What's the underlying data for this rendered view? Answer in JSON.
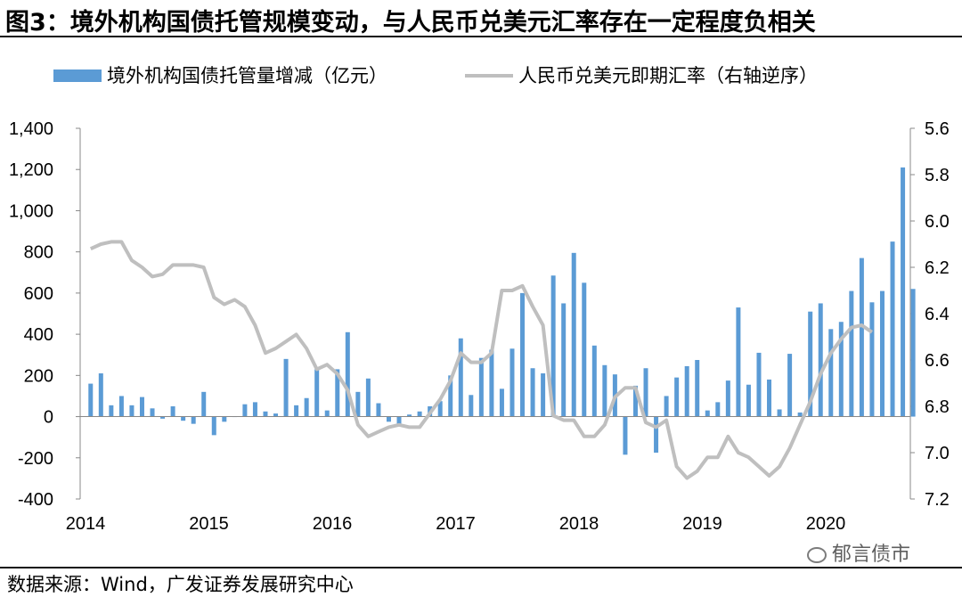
{
  "title": "图3：境外机构国债托管规模变动，与人民币兑美元汇率存在一定程度负相关",
  "source": "数据来源：Wind，广发证券发展研究中心",
  "watermark": "郁言债市",
  "colors": {
    "bar": "#5B9BD5",
    "line": "#BFBFBF"
  },
  "chart_data": {
    "type": "bar+line",
    "legend": {
      "position": "top",
      "bar_label": "境外机构国债托管量增减（亿元）",
      "line_label": "人民币兑美元即期汇率（右轴逆序）"
    },
    "x_axis": {
      "ticks": [
        "2014",
        "2015",
        "2016",
        "2017",
        "2018",
        "2019",
        "2020"
      ]
    },
    "y_left": {
      "min": -400,
      "max": 1400,
      "step": 200,
      "tick_labels": [
        "-400",
        "-200",
        "0",
        "200",
        "400",
        "600",
        "800",
        "1,000",
        "1,200",
        "1,400"
      ]
    },
    "y_right": {
      "min": 5.6,
      "max": 7.2,
      "step": 0.2,
      "reversed": true,
      "tick_labels": [
        "5.6",
        "5.8",
        "6.0",
        "6.2",
        "6.4",
        "6.6",
        "6.8",
        "7.0",
        "7.2"
      ]
    },
    "series": [
      {
        "name": "境外机构国债托管量增减（亿元）",
        "type": "bar",
        "axis": "left",
        "start": "2014-01",
        "values": [
          160,
          210,
          55,
          100,
          55,
          95,
          40,
          -10,
          50,
          -20,
          -35,
          120,
          -90,
          -25,
          0,
          60,
          70,
          25,
          15,
          280,
          55,
          90,
          230,
          30,
          230,
          410,
          120,
          185,
          65,
          -25,
          -40,
          10,
          25,
          50,
          75,
          200,
          380,
          105,
          285,
          325,
          135,
          330,
          600,
          235,
          210,
          685,
          550,
          795,
          650,
          345,
          250,
          205,
          -185,
          150,
          235,
          -175,
          100,
          190,
          245,
          275,
          30,
          70,
          175,
          530,
          155,
          310,
          180,
          35,
          305,
          20,
          510,
          550,
          425,
          460,
          610,
          770,
          555,
          610,
          850,
          1210,
          620
        ]
      },
      {
        "name": "人民币兑美元即期汇率（右轴逆序）",
        "type": "line",
        "axis": "right",
        "start": "2014-01",
        "values": [
          6.12,
          6.1,
          6.09,
          6.09,
          6.17,
          6.2,
          6.24,
          6.23,
          6.19,
          6.19,
          6.19,
          6.2,
          6.33,
          6.36,
          6.34,
          6.37,
          6.45,
          6.57,
          6.55,
          6.52,
          6.49,
          6.55,
          6.64,
          6.62,
          6.66,
          6.73,
          6.88,
          6.93,
          6.91,
          6.89,
          6.88,
          6.89,
          6.89,
          6.83,
          6.77,
          6.69,
          6.57,
          6.61,
          6.61,
          6.57,
          6.3,
          6.3,
          6.28,
          6.37,
          6.45,
          6.84,
          6.86,
          6.86,
          6.93,
          6.93,
          6.88,
          6.76,
          6.72,
          6.72,
          6.87,
          6.89,
          6.86,
          7.06,
          7.11,
          7.08,
          7.02,
          7.02,
          6.93,
          7.0,
          7.02,
          7.06,
          7.1,
          7.06,
          6.98,
          6.88,
          6.78,
          6.66,
          6.57,
          6.51,
          6.46,
          6.45,
          6.48
        ]
      }
    ]
  }
}
